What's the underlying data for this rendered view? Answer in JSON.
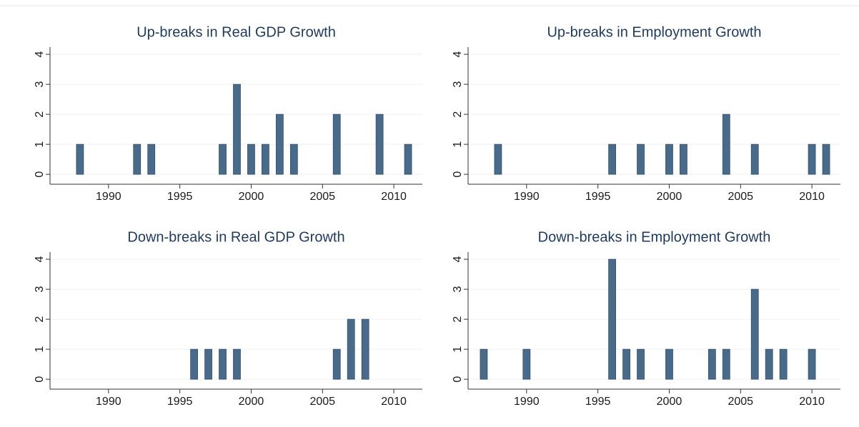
{
  "chart_data": [
    {
      "type": "bar",
      "title": "Up-breaks in Real GDP Growth",
      "x": [
        1988,
        1992,
        1993,
        1998,
        1999,
        2000,
        2001,
        2002,
        2003,
        2006,
        2009,
        2011
      ],
      "values": [
        1,
        1,
        1,
        1,
        3,
        1,
        1,
        2,
        1,
        2,
        2,
        1
      ],
      "color": "#4a6a8a",
      "xlim": [
        1985.9,
        2012
      ],
      "xticks": [
        1990,
        1995,
        2000,
        2005,
        2010
      ],
      "ylim": [
        -0.33,
        4.24
      ],
      "yticks": [
        0,
        1,
        2,
        3,
        4
      ],
      "grid": true
    },
    {
      "type": "bar",
      "title": "Up-breaks in Employment Growth",
      "x": [
        1988,
        1996,
        1998,
        2000,
        2001,
        2004,
        2006,
        2010,
        2011
      ],
      "values": [
        1,
        1,
        1,
        1,
        1,
        2,
        1,
        1,
        1
      ],
      "color": "#4a6a8a",
      "xlim": [
        1985.9,
        2012
      ],
      "xticks": [
        1990,
        1995,
        2000,
        2005,
        2010
      ],
      "ylim": [
        -0.33,
        4.24
      ],
      "yticks": [
        0,
        1,
        2,
        3,
        4
      ],
      "grid": true
    },
    {
      "type": "bar",
      "title": "Down-breaks in Real GDP Growth",
      "x": [
        1996,
        1997,
        1998,
        1999,
        2006,
        2007,
        2008
      ],
      "values": [
        1,
        1,
        1,
        1,
        1,
        2,
        2
      ],
      "color": "#4a6a8a",
      "xlim": [
        1985.9,
        2012
      ],
      "xticks": [
        1990,
        1995,
        2000,
        2005,
        2010
      ],
      "ylim": [
        -0.33,
        4.24
      ],
      "yticks": [
        0,
        1,
        2,
        3,
        4
      ],
      "grid": true
    },
    {
      "type": "bar",
      "title": "Down-breaks in Employment Growth",
      "x": [
        1987,
        1990,
        1996,
        1997,
        1998,
        2000,
        2003,
        2004,
        2006,
        2007,
        2008,
        2010
      ],
      "values": [
        1,
        1,
        4,
        1,
        1,
        1,
        1,
        1,
        3,
        1,
        1,
        1
      ],
      "color": "#4a6a8a",
      "xlim": [
        1985.9,
        2012
      ],
      "xticks": [
        1990,
        1995,
        2000,
        2005,
        2010
      ],
      "ylim": [
        -0.33,
        4.24
      ],
      "yticks": [
        0,
        1,
        2,
        3,
        4
      ],
      "grid": true
    }
  ]
}
